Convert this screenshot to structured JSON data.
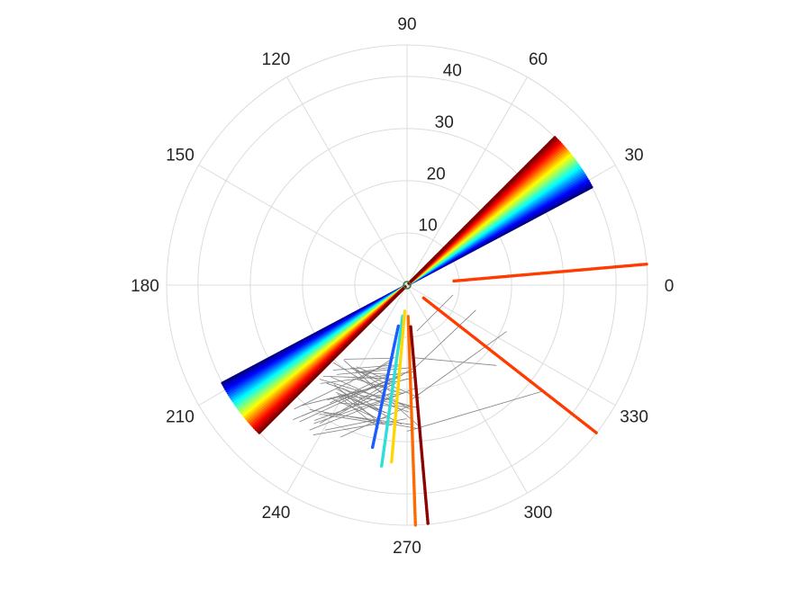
{
  "chart_data": {
    "type": "scatter",
    "polar": true,
    "title": "",
    "angle_unit": "degrees",
    "r_range": [
      0,
      46
    ],
    "r_ticks": [
      10,
      20,
      30,
      40
    ],
    "theta_ticks": [
      0,
      30,
      60,
      90,
      120,
      150,
      180,
      210,
      240,
      270,
      300,
      330
    ],
    "theta_tick_labels": [
      "0",
      "30",
      "60",
      "90",
      "120",
      "150",
      "180",
      "210",
      "240",
      "270",
      "300",
      "330"
    ],
    "r_tick_labels": [
      "10",
      "20",
      "30",
      "40"
    ],
    "grid": true,
    "colormap": "jet",
    "fans": [
      {
        "name_hint": "upper-right fan",
        "theta_start": 28,
        "theta_end": 45,
        "r_start": 0.5,
        "r_end": 40,
        "colors_from": "blue",
        "colors_to": "dark-red"
      },
      {
        "name_hint": "lower-left fan",
        "theta_start": 208,
        "theta_end": 225,
        "r_start": 0.5,
        "r_end": 40,
        "colors_from": "blue",
        "colors_to": "dark-red"
      }
    ],
    "rays": [
      {
        "theta": 5,
        "r_start": 9,
        "r_end": 46,
        "color": "#ff3c00"
      },
      {
        "theta": 322,
        "r_start": 4,
        "r_end": 46,
        "color": "#ff3c00"
      },
      {
        "theta": 258,
        "r_start": 8,
        "r_end": 32,
        "color": "#1a5cff"
      },
      {
        "theta": 262,
        "r_start": 6,
        "r_end": 35,
        "color": "#2be0d8"
      },
      {
        "theta": 265,
        "r_start": 5,
        "r_end": 34,
        "color": "#ffd600"
      },
      {
        "theta": 272,
        "r_start": 6,
        "r_end": 46,
        "color": "#ff6a00"
      },
      {
        "theta": 275,
        "r_start": 8,
        "r_end": 46,
        "color": "#8b0000"
      }
    ],
    "connector_color": "#808080"
  }
}
